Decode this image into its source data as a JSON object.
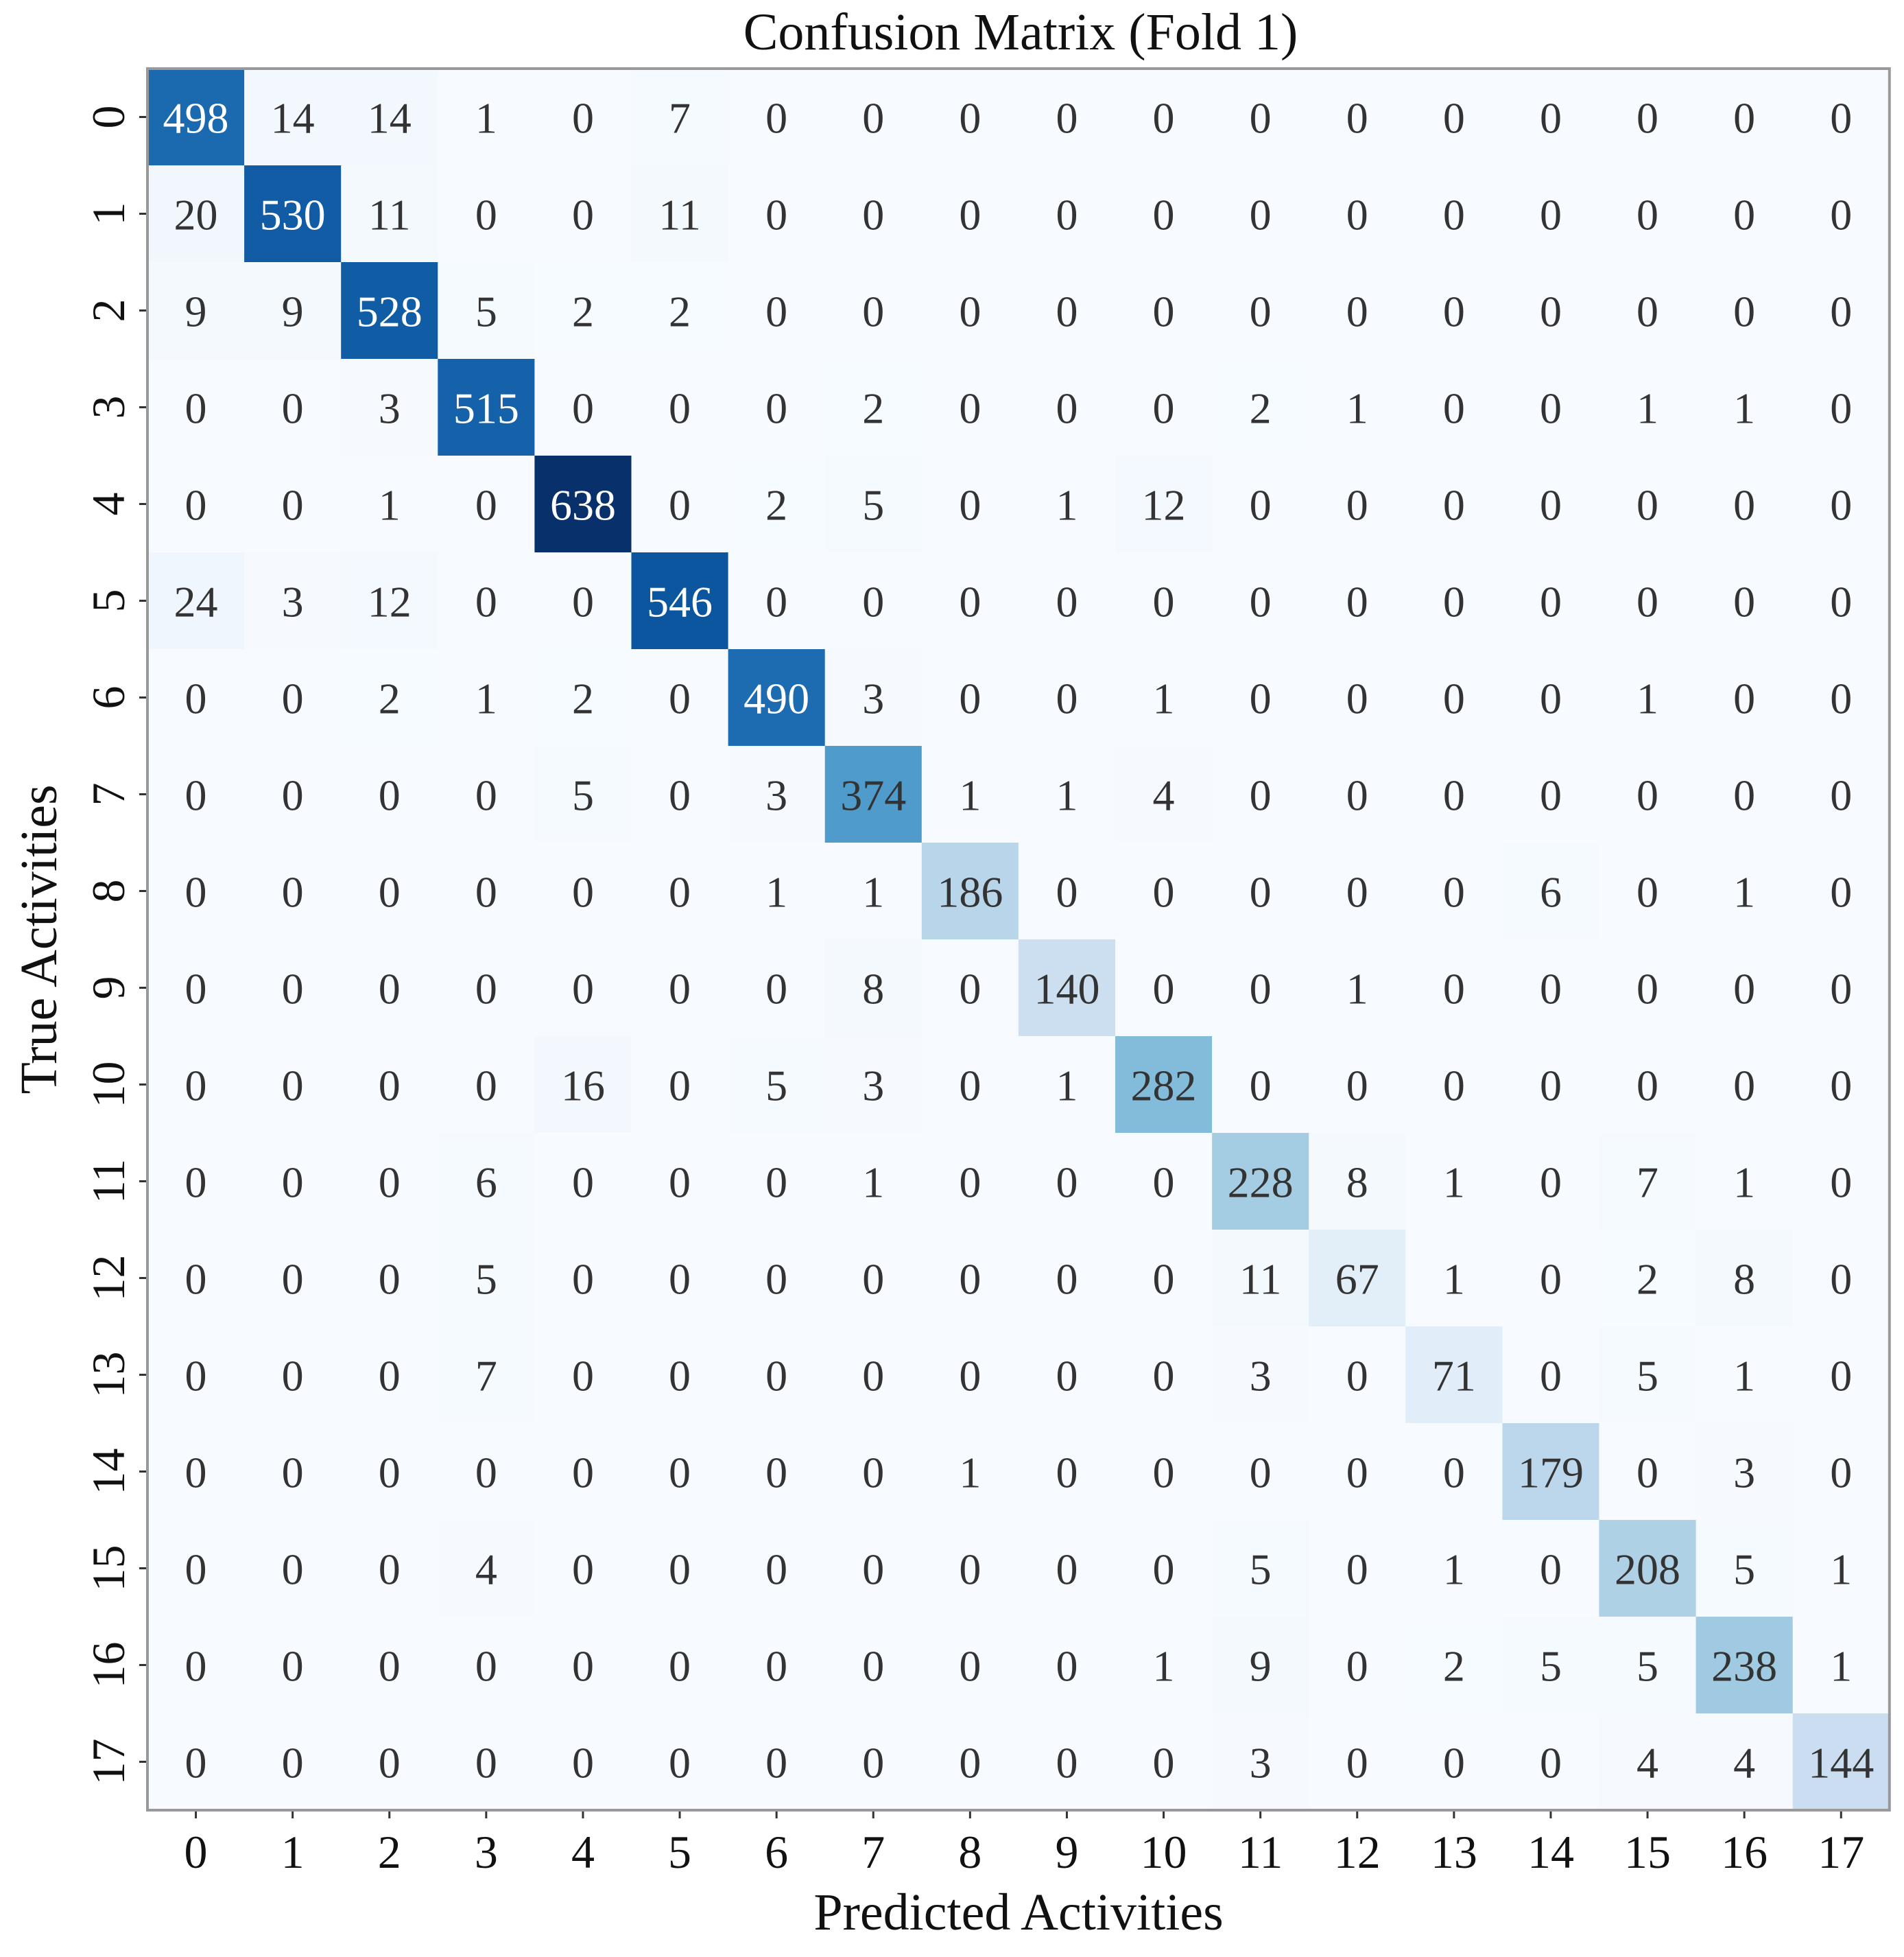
{
  "chart_data": {
    "type": "heatmap",
    "title": "Confusion Matrix (Fold 1)",
    "xlabel": "Predicted Activities",
    "ylabel": "True Activities",
    "x_categories": [
      "0",
      "1",
      "2",
      "3",
      "4",
      "5",
      "6",
      "7",
      "8",
      "9",
      "10",
      "11",
      "12",
      "13",
      "14",
      "15",
      "16",
      "17"
    ],
    "y_categories": [
      "0",
      "1",
      "2",
      "3",
      "4",
      "5",
      "6",
      "7",
      "8",
      "9",
      "10",
      "11",
      "12",
      "13",
      "14",
      "15",
      "16",
      "17"
    ],
    "colormap": "Blues",
    "color_min": "#f7fbff",
    "color_max": "#08306b",
    "value_range": [
      0,
      638
    ],
    "matrix": [
      [
        498,
        14,
        14,
        1,
        0,
        7,
        0,
        0,
        0,
        0,
        0,
        0,
        0,
        0,
        0,
        0,
        0,
        0
      ],
      [
        20,
        530,
        11,
        0,
        0,
        11,
        0,
        0,
        0,
        0,
        0,
        0,
        0,
        0,
        0,
        0,
        0,
        0
      ],
      [
        9,
        9,
        528,
        5,
        2,
        2,
        0,
        0,
        0,
        0,
        0,
        0,
        0,
        0,
        0,
        0,
        0,
        0
      ],
      [
        0,
        0,
        3,
        515,
        0,
        0,
        0,
        2,
        0,
        0,
        0,
        2,
        1,
        0,
        0,
        1,
        1,
        0
      ],
      [
        0,
        0,
        1,
        0,
        638,
        0,
        2,
        5,
        0,
        1,
        12,
        0,
        0,
        0,
        0,
        0,
        0,
        0
      ],
      [
        24,
        3,
        12,
        0,
        0,
        546,
        0,
        0,
        0,
        0,
        0,
        0,
        0,
        0,
        0,
        0,
        0,
        0
      ],
      [
        0,
        0,
        2,
        1,
        2,
        0,
        490,
        3,
        0,
        0,
        1,
        0,
        0,
        0,
        0,
        1,
        0,
        0
      ],
      [
        0,
        0,
        0,
        0,
        5,
        0,
        3,
        374,
        1,
        1,
        4,
        0,
        0,
        0,
        0,
        0,
        0,
        0
      ],
      [
        0,
        0,
        0,
        0,
        0,
        0,
        1,
        1,
        186,
        0,
        0,
        0,
        0,
        0,
        6,
        0,
        1,
        0
      ],
      [
        0,
        0,
        0,
        0,
        0,
        0,
        0,
        8,
        0,
        140,
        0,
        0,
        1,
        0,
        0,
        0,
        0,
        0
      ],
      [
        0,
        0,
        0,
        0,
        16,
        0,
        5,
        3,
        0,
        1,
        282,
        0,
        0,
        0,
        0,
        0,
        0,
        0
      ],
      [
        0,
        0,
        0,
        6,
        0,
        0,
        0,
        1,
        0,
        0,
        0,
        228,
        8,
        1,
        0,
        7,
        1,
        0
      ],
      [
        0,
        0,
        0,
        5,
        0,
        0,
        0,
        0,
        0,
        0,
        0,
        11,
        67,
        1,
        0,
        2,
        8,
        0
      ],
      [
        0,
        0,
        0,
        7,
        0,
        0,
        0,
        0,
        0,
        0,
        0,
        3,
        0,
        71,
        0,
        5,
        1,
        0
      ],
      [
        0,
        0,
        0,
        0,
        0,
        0,
        0,
        0,
        1,
        0,
        0,
        0,
        0,
        0,
        179,
        0,
        3,
        0
      ],
      [
        0,
        0,
        0,
        4,
        0,
        0,
        0,
        0,
        0,
        0,
        0,
        5,
        0,
        1,
        0,
        208,
        5,
        1
      ],
      [
        0,
        0,
        0,
        0,
        0,
        0,
        0,
        0,
        0,
        0,
        1,
        9,
        0,
        2,
        5,
        5,
        238,
        1
      ],
      [
        0,
        0,
        0,
        0,
        0,
        0,
        0,
        0,
        0,
        0,
        0,
        3,
        0,
        0,
        0,
        4,
        4,
        144
      ]
    ],
    "annotation_color_dark": "#333333",
    "annotation_color_light": "#ffffff",
    "grid": false,
    "frame_color": "#999999"
  }
}
